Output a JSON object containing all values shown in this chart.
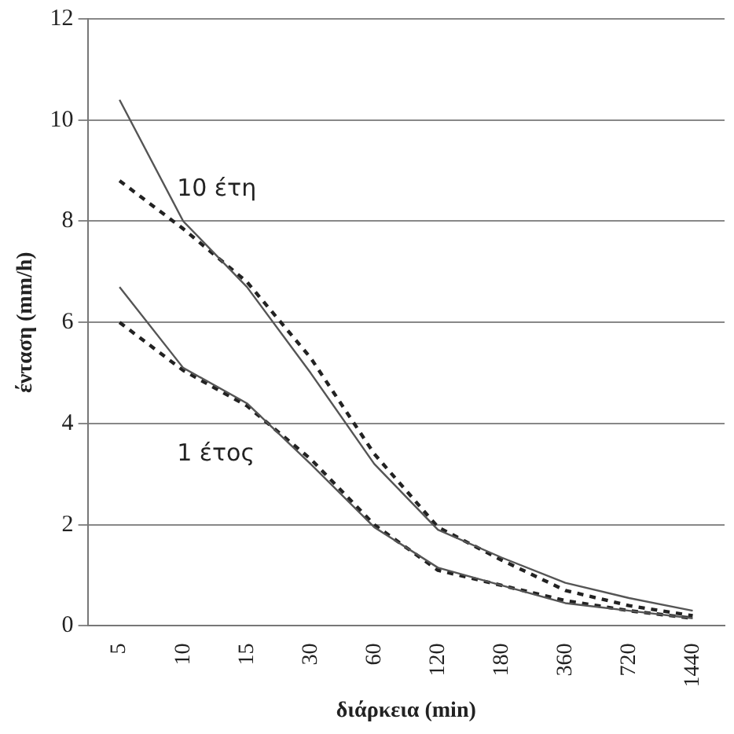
{
  "chart_data": {
    "type": "line",
    "xlabel": "διάρκεια (min)",
    "ylabel": "ένταση (mm/h)",
    "categories": [
      "5",
      "10",
      "15",
      "30",
      "60",
      "120",
      "180",
      "360",
      "720",
      "1440"
    ],
    "series": [
      {
        "color": "#555555",
        "line_style": "solid",
        "values": [
          10.4,
          8.0,
          6.7,
          5.0,
          3.2,
          1.9,
          1.35,
          0.85,
          0.55,
          0.3
        ]
      },
      {
        "color": "#222222",
        "line_style": "dashed",
        "values": [
          8.8,
          7.85,
          6.8,
          5.3,
          3.4,
          1.95,
          1.3,
          0.7,
          0.4,
          0.2
        ]
      },
      {
        "color": "#555555",
        "line_style": "solid",
        "values": [
          6.7,
          5.1,
          4.4,
          3.2,
          1.95,
          1.15,
          0.8,
          0.45,
          0.3,
          0.15
        ]
      },
      {
        "color": "#222222",
        "line_style": "dashed",
        "values": [
          6.0,
          5.05,
          4.35,
          3.3,
          2.0,
          1.1,
          0.8,
          0.5,
          0.3,
          0.15
        ]
      }
    ],
    "annotations": [
      "10 έτη",
      "1 έτος"
    ],
    "ylim": [
      0,
      12
    ],
    "yticks": [
      0,
      2,
      4,
      6,
      8,
      10,
      12
    ],
    "grid": "y",
    "legend": false,
    "marker": "none"
  }
}
